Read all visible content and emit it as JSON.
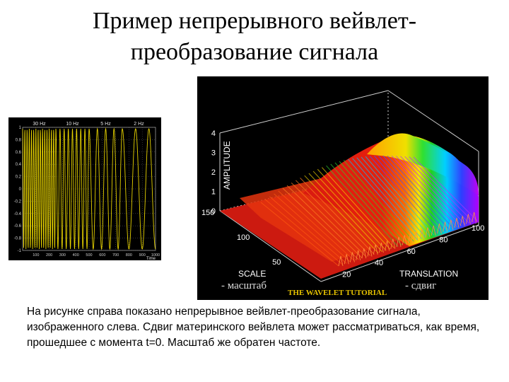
{
  "slide": {
    "title_line1": "Пример непрерывного вейвлет-",
    "title_line2": "преобразование сигнала",
    "caption": "На рисунке справа показано непрерывное вейвлет-преобразование сигнала, изображенного слева. Сдвиг материнского вейвлета может рассматриваться, как время, прошедшее с момента t=0. Масштаб же обратен частоте."
  },
  "signal_plot": {
    "segment_labels": [
      "30 Hz",
      "10 Hz",
      "5 Hz",
      "2 Hz"
    ],
    "y_ticks": [
      "1",
      "0.8",
      "0.6",
      "0.4",
      "0.2",
      "0",
      "-0.2",
      "-0.4",
      "-0.6",
      "-0.8",
      "-1"
    ],
    "x_ticks": [
      "100",
      "200",
      "300",
      "400",
      "500",
      "600",
      "700",
      "800",
      "900",
      "1000"
    ],
    "x_label": "Time",
    "colors": {
      "background": "#000000",
      "signal": "#e6d200",
      "grid": "#606060"
    }
  },
  "wavelet_plot": {
    "z_label": "AMPLITUDE",
    "z_ticks": [
      "0",
      "1",
      "2",
      "3",
      "4"
    ],
    "scale_label": "SCALE",
    "scale_ticks": [
      "150",
      "100",
      "50"
    ],
    "translation_label": "TRANSLATION",
    "translation_ticks": [
      "100",
      "80",
      "60",
      "40",
      "20"
    ],
    "scale_note": "- масштаб",
    "translation_note": "- сдвиг",
    "brand": "THE WAVELET TUTORIAL",
    "colors": {
      "background": "#000000",
      "text": "#ffffff",
      "brand": "#e8c400"
    }
  }
}
